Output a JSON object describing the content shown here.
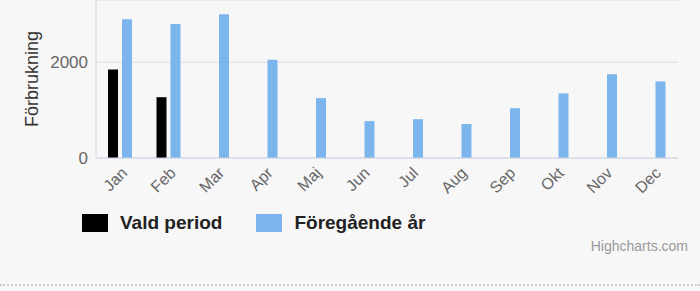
{
  "chart_data": {
    "type": "bar",
    "y_label": "Förbrukning",
    "categories": [
      "Jan",
      "Feb",
      "Mar",
      "Apr",
      "Maj",
      "Jun",
      "Jul",
      "Aug",
      "Sep",
      "Okt",
      "Nov",
      "Dec"
    ],
    "series": [
      {
        "name": "Vald period",
        "color": "#000000",
        "values": [
          1850,
          1270,
          null,
          null,
          null,
          null,
          null,
          null,
          null,
          null,
          null,
          null
        ]
      },
      {
        "name": "Föregående år",
        "color": "#7cb5ec",
        "values": [
          2900,
          2800,
          3000,
          2050,
          1250,
          770,
          810,
          710,
          1040,
          1350,
          1750,
          1600
        ]
      }
    ],
    "ylim": [
      0,
      3300
    ],
    "yticks": [
      0,
      2000
    ],
    "grid": true,
    "legend": "bottom",
    "credits": "Highcharts.com"
  }
}
